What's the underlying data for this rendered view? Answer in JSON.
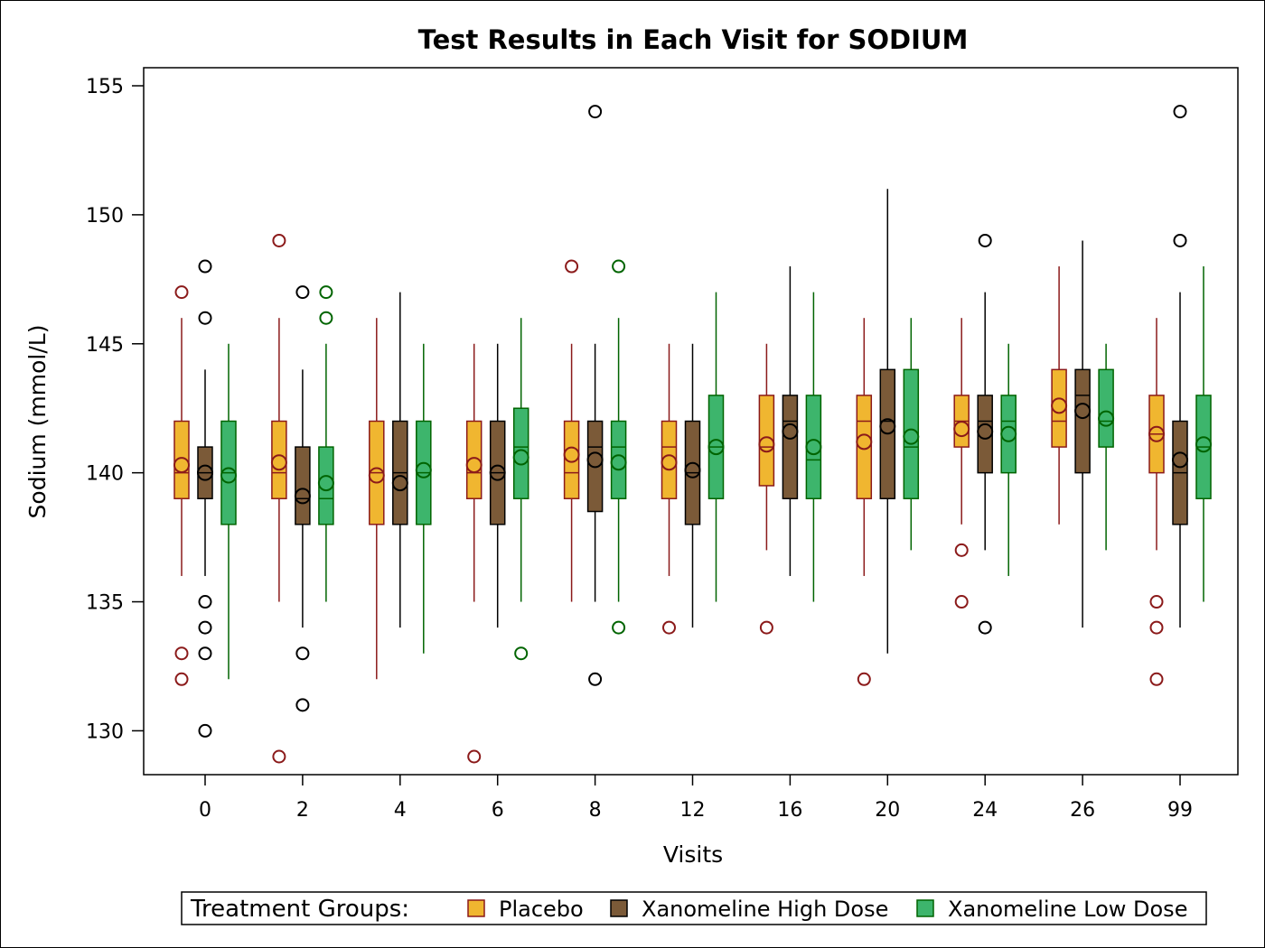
{
  "chart_data": {
    "type": "box",
    "title": "Test Results in Each Visit for SODIUM",
    "xlabel": "Visits",
    "ylabel": "Sodium (mmol/L)",
    "ylim": [
      128.3,
      155.7
    ],
    "yticks": [
      130,
      135,
      140,
      145,
      150,
      155
    ],
    "categories": [
      "0",
      "2",
      "4",
      "6",
      "8",
      "12",
      "16",
      "20",
      "24",
      "26",
      "99"
    ],
    "grid": false,
    "legend": {
      "title": "Treatment Groups:",
      "position": "bottom",
      "entries": [
        "Placebo",
        "Xanomeline High Dose",
        "Xanomeline Low Dose"
      ]
    },
    "series": [
      {
        "name": "Placebo",
        "fill": "#F0B630",
        "line": "#8B1A1A",
        "boxes": [
          {
            "q1": 139,
            "median": 140,
            "q3": 142,
            "whisker_low": 136,
            "whisker_high": 146,
            "mean": 140.3,
            "outliers": [
              147,
              133,
              132
            ]
          },
          {
            "q1": 139,
            "median": 140,
            "q3": 142,
            "whisker_low": 135,
            "whisker_high": 146,
            "mean": 140.4,
            "outliers": [
              149,
              129
            ]
          },
          {
            "q1": 138,
            "median": 140,
            "q3": 142,
            "whisker_low": 132,
            "whisker_high": 146,
            "mean": 139.9,
            "outliers": []
          },
          {
            "q1": 139,
            "median": 140,
            "q3": 142,
            "whisker_low": 135,
            "whisker_high": 145,
            "mean": 140.3,
            "outliers": [
              129
            ]
          },
          {
            "q1": 139,
            "median": 140,
            "q3": 142,
            "whisker_low": 135,
            "whisker_high": 145,
            "mean": 140.7,
            "outliers": [
              148
            ]
          },
          {
            "q1": 139,
            "median": 141,
            "q3": 142,
            "whisker_low": 136,
            "whisker_high": 145,
            "mean": 140.4,
            "outliers": [
              134
            ]
          },
          {
            "q1": 139.5,
            "median": 141,
            "q3": 143,
            "whisker_low": 137,
            "whisker_high": 145,
            "mean": 141.1,
            "outliers": [
              134
            ]
          },
          {
            "q1": 139,
            "median": 142,
            "q3": 143,
            "whisker_low": 136,
            "whisker_high": 146,
            "mean": 141.2,
            "outliers": [
              132
            ]
          },
          {
            "q1": 141,
            "median": 142,
            "q3": 143,
            "whisker_low": 138,
            "whisker_high": 146,
            "mean": 141.7,
            "outliers": [
              137,
              135
            ]
          },
          {
            "q1": 141,
            "median": 142,
            "q3": 144,
            "whisker_low": 138,
            "whisker_high": 148,
            "mean": 142.6,
            "outliers": []
          },
          {
            "q1": 140,
            "median": 141.5,
            "q3": 143,
            "whisker_low": 137,
            "whisker_high": 146,
            "mean": 141.5,
            "outliers": [
              135,
              134,
              132
            ]
          }
        ]
      },
      {
        "name": "Xanomeline High Dose",
        "fill": "#7B5A38",
        "line": "#000000",
        "boxes": [
          {
            "q1": 139,
            "median": 140,
            "q3": 141,
            "whisker_low": 136,
            "whisker_high": 144,
            "mean": 140.0,
            "outliers": [
              148,
              146,
              135,
              134,
              133,
              130
            ]
          },
          {
            "q1": 138,
            "median": 139,
            "q3": 141,
            "whisker_low": 134,
            "whisker_high": 144,
            "mean": 139.1,
            "outliers": [
              147,
              133,
              131
            ]
          },
          {
            "q1": 138,
            "median": 140,
            "q3": 142,
            "whisker_low": 134,
            "whisker_high": 147,
            "mean": 139.6,
            "outliers": []
          },
          {
            "q1": 138,
            "median": 140,
            "q3": 142,
            "whisker_low": 134,
            "whisker_high": 145,
            "mean": 140.0,
            "outliers": []
          },
          {
            "q1": 138.5,
            "median": 141,
            "q3": 142,
            "whisker_low": 135,
            "whisker_high": 145,
            "mean": 140.5,
            "outliers": [
              154,
              132
            ]
          },
          {
            "q1": 138,
            "median": 140,
            "q3": 142,
            "whisker_low": 134,
            "whisker_high": 145,
            "mean": 140.1,
            "outliers": []
          },
          {
            "q1": 139,
            "median": 142,
            "q3": 143,
            "whisker_low": 136,
            "whisker_high": 148,
            "mean": 141.6,
            "outliers": []
          },
          {
            "q1": 139,
            "median": 142,
            "q3": 144,
            "whisker_low": 133,
            "whisker_high": 151,
            "mean": 141.8,
            "outliers": []
          },
          {
            "q1": 140,
            "median": 142,
            "q3": 143,
            "whisker_low": 137,
            "whisker_high": 147,
            "mean": 141.6,
            "outliers": [
              149,
              134
            ]
          },
          {
            "q1": 140,
            "median": 143,
            "q3": 144,
            "whisker_low": 134,
            "whisker_high": 149,
            "mean": 142.4,
            "outliers": []
          },
          {
            "q1": 138,
            "median": 140,
            "q3": 142,
            "whisker_low": 134,
            "whisker_high": 147,
            "mean": 140.5,
            "outliers": [
              154,
              149
            ]
          }
        ]
      },
      {
        "name": "Xanomeline Low Dose",
        "fill": "#3DB56C",
        "line": "#006400",
        "boxes": [
          {
            "q1": 138,
            "median": 140,
            "q3": 142,
            "whisker_low": 132,
            "whisker_high": 145,
            "mean": 139.9,
            "outliers": []
          },
          {
            "q1": 138,
            "median": 139,
            "q3": 141,
            "whisker_low": 135,
            "whisker_high": 145,
            "mean": 139.6,
            "outliers": [
              147,
              146
            ]
          },
          {
            "q1": 138,
            "median": 140,
            "q3": 142,
            "whisker_low": 133,
            "whisker_high": 145,
            "mean": 140.1,
            "outliers": []
          },
          {
            "q1": 139,
            "median": 141,
            "q3": 142.5,
            "whisker_low": 135,
            "whisker_high": 146,
            "mean": 140.6,
            "outliers": [
              133
            ]
          },
          {
            "q1": 139,
            "median": 141,
            "q3": 142,
            "whisker_low": 135,
            "whisker_high": 146,
            "mean": 140.4,
            "outliers": [
              148,
              134
            ]
          },
          {
            "q1": 139,
            "median": 141,
            "q3": 143,
            "whisker_low": 135,
            "whisker_high": 147,
            "mean": 141.0,
            "outliers": []
          },
          {
            "q1": 139,
            "median": 140.5,
            "q3": 143,
            "whisker_low": 135,
            "whisker_high": 147,
            "mean": 141.0,
            "outliers": []
          },
          {
            "q1": 139,
            "median": 141,
            "q3": 144,
            "whisker_low": 137,
            "whisker_high": 146,
            "mean": 141.4,
            "outliers": []
          },
          {
            "q1": 140,
            "median": 142,
            "q3": 143,
            "whisker_low": 136,
            "whisker_high": 145,
            "mean": 141.5,
            "outliers": []
          },
          {
            "q1": 141,
            "median": 142,
            "q3": 144,
            "whisker_low": 137,
            "whisker_high": 145,
            "mean": 142.1,
            "outliers": []
          },
          {
            "q1": 139,
            "median": 141,
            "q3": 143,
            "whisker_low": 135,
            "whisker_high": 148,
            "mean": 141.1,
            "outliers": []
          }
        ]
      }
    ]
  }
}
